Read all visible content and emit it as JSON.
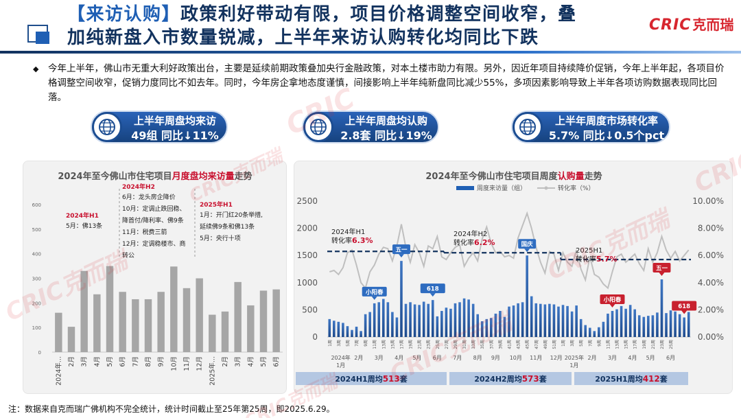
{
  "header": {
    "title_tag": "【来访认购】",
    "title_line1_rest": "政策利好带动有限，项目价格调整空间收窄，叠",
    "title_line2": "加纯新盘入市数量锐减，上半年来访认购转化均同比下跌",
    "logo_text": "CRIC",
    "logo_cn": "克而瑞",
    "watermark": "CRIC克而瑞"
  },
  "summary": "今年上半年，佛山市无重大利好政策出台，主要是延续前期政策叠加央行金融政策，对本土楼市助力有限。另外，因近年项目持续降价促销，今年上半年起，各项目价格调整空间收窄，促销力度同比不如去年。同时，今年房企拿地态度谨慎，间接影响上半年纯新盘同比减少55%，多项因素影响导致上半年各项访购数据表现同比回落。",
  "kpis": [
    {
      "line1": "上半年周盘均来访",
      "line2": "49组  同比↓11%"
    },
    {
      "line1": "上半年周盘均认购",
      "line2": "2.8套  同比↓19%"
    },
    {
      "line1": "上半年周度市场转化率",
      "line2": "5.7%  同比↓0.5个pct"
    }
  ],
  "colors": {
    "navy": "#12325e",
    "blue": "#1f5fb4",
    "red": "#c8102e",
    "gray_bar": "#a6a6a6",
    "line_gray": "#bfbfbf",
    "dash": "#12325e"
  },
  "footnote": "注：数据来自克而瑞广佛机构不完全统计，统计时间截止至25年第25周，即2025.6.29。",
  "chart_data": [
    {
      "type": "bar",
      "title_pre": "2024年至今佛山市住宅项目",
      "title_hl": "月度盘均来访量",
      "title_post": "走势",
      "categories": [
        "2024年...",
        "2月",
        "3月",
        "4月",
        "5月",
        "6月",
        "7月",
        "8月",
        "9月",
        "10月",
        "11月",
        "12月",
        "2025年...",
        "2月",
        "3月",
        "4月",
        "5月",
        "6月"
      ],
      "values": [
        160,
        103,
        330,
        235,
        350,
        245,
        215,
        215,
        245,
        348,
        260,
        300,
        152,
        165,
        285,
        190,
        250,
        255
      ],
      "yticks": [
        0,
        100,
        200,
        300,
        400,
        500,
        600
      ],
      "ylim": [
        0,
        600
      ],
      "annotations": [
        {
          "title": "2024年H1",
          "lines": [
            "5月：佛13条"
          ]
        },
        {
          "title": "2024年H2",
          "lines": [
            "6月：龙头房企降价",
            "10月：定调止跌回稳、",
            "降首付/降利率、佛9条",
            "11月：税费三箭",
            "12月：定调稳楼市、商",
            "转公"
          ]
        },
        {
          "title": "2025年H1",
          "lines": [
            "1月：开门红20条举措,",
            "延续佛9条和佛13条",
            "5月：央行十项"
          ]
        }
      ]
    },
    {
      "type": "bar+line",
      "title_pre": "2024年至今佛山市住宅项目周度",
      "title_hl": "认购量",
      "title_post": "走势",
      "legend": [
        "周度来访量（组）",
        "转化率（%）"
      ],
      "y_left_ticks": [
        0,
        500,
        1000,
        1500,
        2000,
        2500
      ],
      "y_left_lim": [
        0,
        2500
      ],
      "y_right_ticks": [
        "0.00%",
        "2.00%",
        "4.00%",
        "6.00%",
        "8.00%",
        "10.00%"
      ],
      "y_right_lim": [
        0,
        10
      ],
      "bars": [
        330,
        300,
        280,
        260,
        200,
        130,
        190,
        110,
        420,
        460,
        620,
        640,
        700,
        640,
        460,
        360,
        1400,
        610,
        640,
        600,
        590,
        650,
        610,
        680,
        380,
        480,
        540,
        520,
        620,
        640,
        710,
        690,
        610,
        420,
        290,
        330,
        350,
        430,
        480,
        370,
        560,
        580,
        620,
        640,
        1500,
        750,
        620,
        610,
        600,
        610,
        600,
        560,
        590,
        570,
        470,
        580,
        330,
        220,
        170,
        110,
        180,
        280,
        430,
        480,
        510,
        570,
        520,
        590,
        510,
        400,
        370,
        390,
        400,
        450,
        1060,
        440,
        490,
        470,
        420,
        360,
        460
      ],
      "rate": [
        4.8,
        4.9,
        4.6,
        5.1,
        6.2,
        6.4,
        5.3,
        4.0,
        3.6,
        4.8,
        5.3,
        6.1,
        6.6,
        6.5,
        5.6,
        6.7,
        8.3,
        6.6,
        5.5,
        6.8,
        6.2,
        5.2,
        6.7,
        6.5,
        7.4,
        5.9,
        5.7,
        6.2,
        6.6,
        6.8,
        5.2,
        5.8,
        6.2,
        5.6,
        7.2,
        8.1,
        6.9,
        6.2,
        6.3,
        5.9,
        6.0,
        5.8,
        7.3,
        8.2,
        9.1,
        8.0,
        6.6,
        5.5,
        4.7,
        6.3,
        6.1,
        4.9,
        6.2,
        5.5,
        5.2,
        6.4,
        5.0,
        4.2,
        5.9,
        4.6,
        4.4,
        3.9,
        3.6,
        4.8,
        5.9,
        6.1,
        5.5,
        5.8,
        6.1,
        5.4,
        4.9,
        6.5,
        5.5,
        6.2,
        7.4,
        6.4,
        5.8,
        6.3,
        5.6,
        6.0,
        6.4
      ],
      "averages": [
        {
          "label": "2024年H1",
          "prefix": "转化率",
          "value": "6.3%",
          "rate": 6.3
        },
        {
          "label": "2024年H2",
          "prefix": "转化率",
          "value": "6.2%",
          "rate": 6.2
        },
        {
          "label": "2025H1",
          "prefix": "转化率",
          "value": "5.7%",
          "rate": 5.7
        }
      ],
      "event_flags": [
        {
          "label": "小阳春",
          "week": 11,
          "color": "blue"
        },
        {
          "label": "五一",
          "week": 17,
          "color": "blue"
        },
        {
          "label": "618",
          "week": 24,
          "color": "blue"
        },
        {
          "label": "国庆",
          "week": 45,
          "color": "blue"
        },
        {
          "label": "小阳春",
          "week": 64,
          "color": "red"
        },
        {
          "label": "五一",
          "week": 75,
          "color": "red"
        },
        {
          "label": "618",
          "week": 80,
          "color": "red"
        }
      ],
      "x_week_labels": [
        "1周",
        "3周",
        "5周",
        "7周",
        "9周",
        "11周",
        "13周",
        "15周",
        "17周",
        "19周",
        "21周",
        "23周",
        "25周",
        "27周",
        "29周",
        "31周",
        "33周",
        "35周",
        "37周",
        "39周",
        "41周",
        "43周",
        "45周",
        "47周",
        "49周",
        "51周",
        "1周",
        "3周",
        "5周",
        "7周",
        "9周",
        "11周",
        "13周",
        "15周",
        "17周",
        "19周",
        "21周",
        "23周",
        "25周"
      ],
      "x_month_labels": [
        "2024年1月",
        "2月",
        "3月",
        "4月",
        "5月",
        "6月",
        "7月",
        "8月",
        "9月",
        "10月",
        "11月",
        "12月",
        "2025年1月",
        "2月",
        "3月",
        "4月",
        "5月",
        "6月"
      ],
      "period_summaries": [
        {
          "pre": "2024H1周均",
          "num": "513",
          "post": "套"
        },
        {
          "pre": "2024H2周均",
          "num": "573",
          "post": "套"
        },
        {
          "pre": "2025H1周均",
          "num": "412",
          "post": "套"
        }
      ]
    }
  ]
}
